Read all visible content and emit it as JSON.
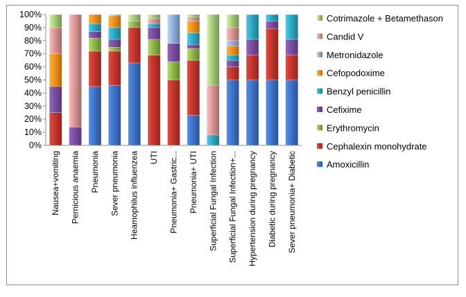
{
  "chart_data": {
    "type": "bar",
    "stacked": true,
    "normalized": true,
    "grid": false,
    "legend_position": "right",
    "ylim": [
      0,
      100
    ],
    "ytick_labels": [
      "0%",
      "10%",
      "20%",
      "30%",
      "40%",
      "50%",
      "60%",
      "70%",
      "80%",
      "90%",
      "100%"
    ],
    "categories": [
      "Nausea+vomiting",
      "Pernicious anaemia",
      "Pneumonia",
      "Sever pneumonia",
      "Heamophilus influenzea",
      "UTI",
      "Pneumonia+ Gastric...",
      "Pneumonia+ UTI",
      "Superficial Fungal Infection",
      "Superficial Fungal Infection+...",
      "Hypertension during pregnancy",
      "Diabetic during pregnancy",
      "Sever pneumonia+ Diabetic"
    ],
    "series": [
      {
        "name": "Amoxicillin",
        "color": "#3f73c6",
        "values": [
          0,
          0,
          45,
          46,
          63,
          0,
          0,
          23,
          0,
          50,
          50,
          50,
          50
        ]
      },
      {
        "name": "Cephalexin monohydrate",
        "color": "#c0372e",
        "values": [
          25,
          0,
          27,
          26,
          27,
          69,
          50,
          42,
          0,
          10,
          19,
          39,
          19
        ]
      },
      {
        "name": "Erythromycin",
        "color": "#8eb54a",
        "values": [
          0,
          0,
          10,
          3,
          5,
          12,
          14,
          9,
          0,
          0,
          0,
          0,
          0
        ]
      },
      {
        "name": "Cefixime",
        "color": "#7a4ea0",
        "values": [
          20,
          14,
          5,
          6,
          0,
          9,
          14,
          3,
          0,
          5,
          12,
          6,
          12
        ]
      },
      {
        "name": "Benzyl penicillin",
        "color": "#30a7c1",
        "values": [
          0,
          0,
          6,
          9,
          0,
          3,
          0,
          9,
          8,
          4,
          19,
          5,
          19
        ]
      },
      {
        "name": "Cefopodoxime",
        "color": "#f0901e",
        "values": [
          25,
          0,
          7,
          9,
          0,
          0,
          0,
          9,
          0,
          7,
          0,
          0,
          0
        ]
      },
      {
        "name": "Metronidazole",
        "color": "#8eaed8",
        "values": [
          0,
          0,
          0,
          0,
          0,
          0,
          22,
          0,
          0,
          4,
          0,
          0,
          0
        ]
      },
      {
        "name": "Candid V",
        "color": "#d99594",
        "values": [
          20,
          86,
          0,
          0,
          0,
          4,
          0,
          3,
          38,
          10,
          0,
          0,
          0
        ]
      },
      {
        "name": "Cotrimazole + Betamethason",
        "color": "#a5c97a",
        "values": [
          10,
          0,
          0,
          1,
          5,
          3,
          0,
          2,
          54,
          10,
          0,
          0,
          0
        ]
      }
    ]
  }
}
